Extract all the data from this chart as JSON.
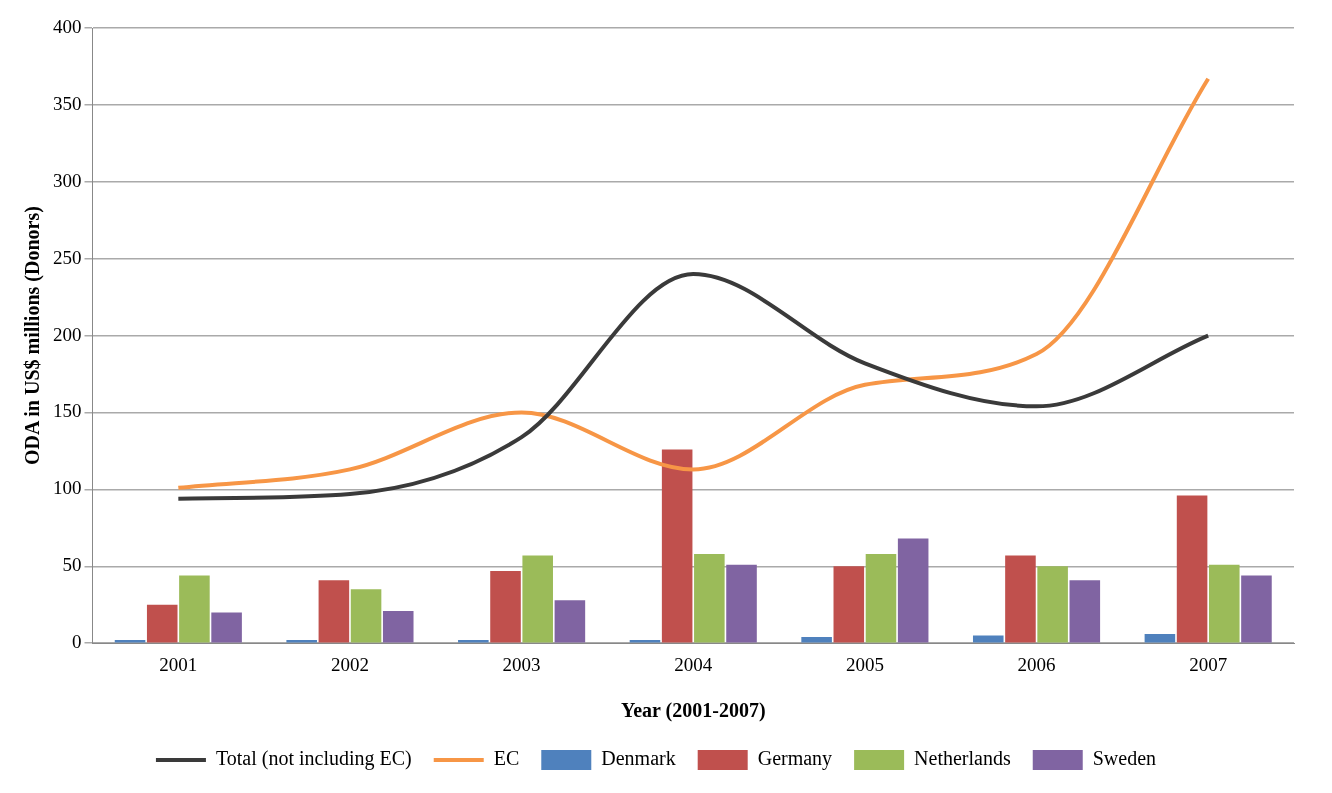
{
  "chart_data": {
    "type": "bar",
    "xlabel": "Year (2001-2007)",
    "ylabel": "ODA in US$ millions (Donors)",
    "categories": [
      "2001",
      "2002",
      "2003",
      "2004",
      "2005",
      "2006",
      "2007"
    ],
    "series": [
      {
        "name": "Denmark",
        "color": "#4f81bd",
        "values": [
          2,
          2,
          2,
          2,
          4,
          5,
          6
        ]
      },
      {
        "name": "Germany",
        "color": "#c0504d",
        "values": [
          25,
          41,
          47,
          126,
          50,
          57,
          96
        ]
      },
      {
        "name": "Netherlands",
        "color": "#9bbb59",
        "values": [
          44,
          35,
          57,
          58,
          58,
          50,
          51
        ]
      },
      {
        "name": "Sweden",
        "color": "#8064a2",
        "values": [
          20,
          21,
          28,
          51,
          68,
          41,
          44
        ]
      },
      {
        "name": "Total (not including EC)",
        "type": "line",
        "color": "#3a3a3a",
        "values": [
          94,
          97,
          134,
          240,
          182,
          154,
          200
        ]
      },
      {
        "name": "EC",
        "type": "line",
        "color": "#f79646",
        "values": [
          101,
          113,
          150,
          113,
          168,
          188,
          367
        ]
      }
    ],
    "ylim": [
      0,
      400
    ],
    "yticks": [
      0,
      50,
      100,
      150,
      200,
      250,
      300,
      350,
      400
    ],
    "grid": "y",
    "legend": "bottom",
    "marker": "none",
    "line_style": "solid"
  }
}
